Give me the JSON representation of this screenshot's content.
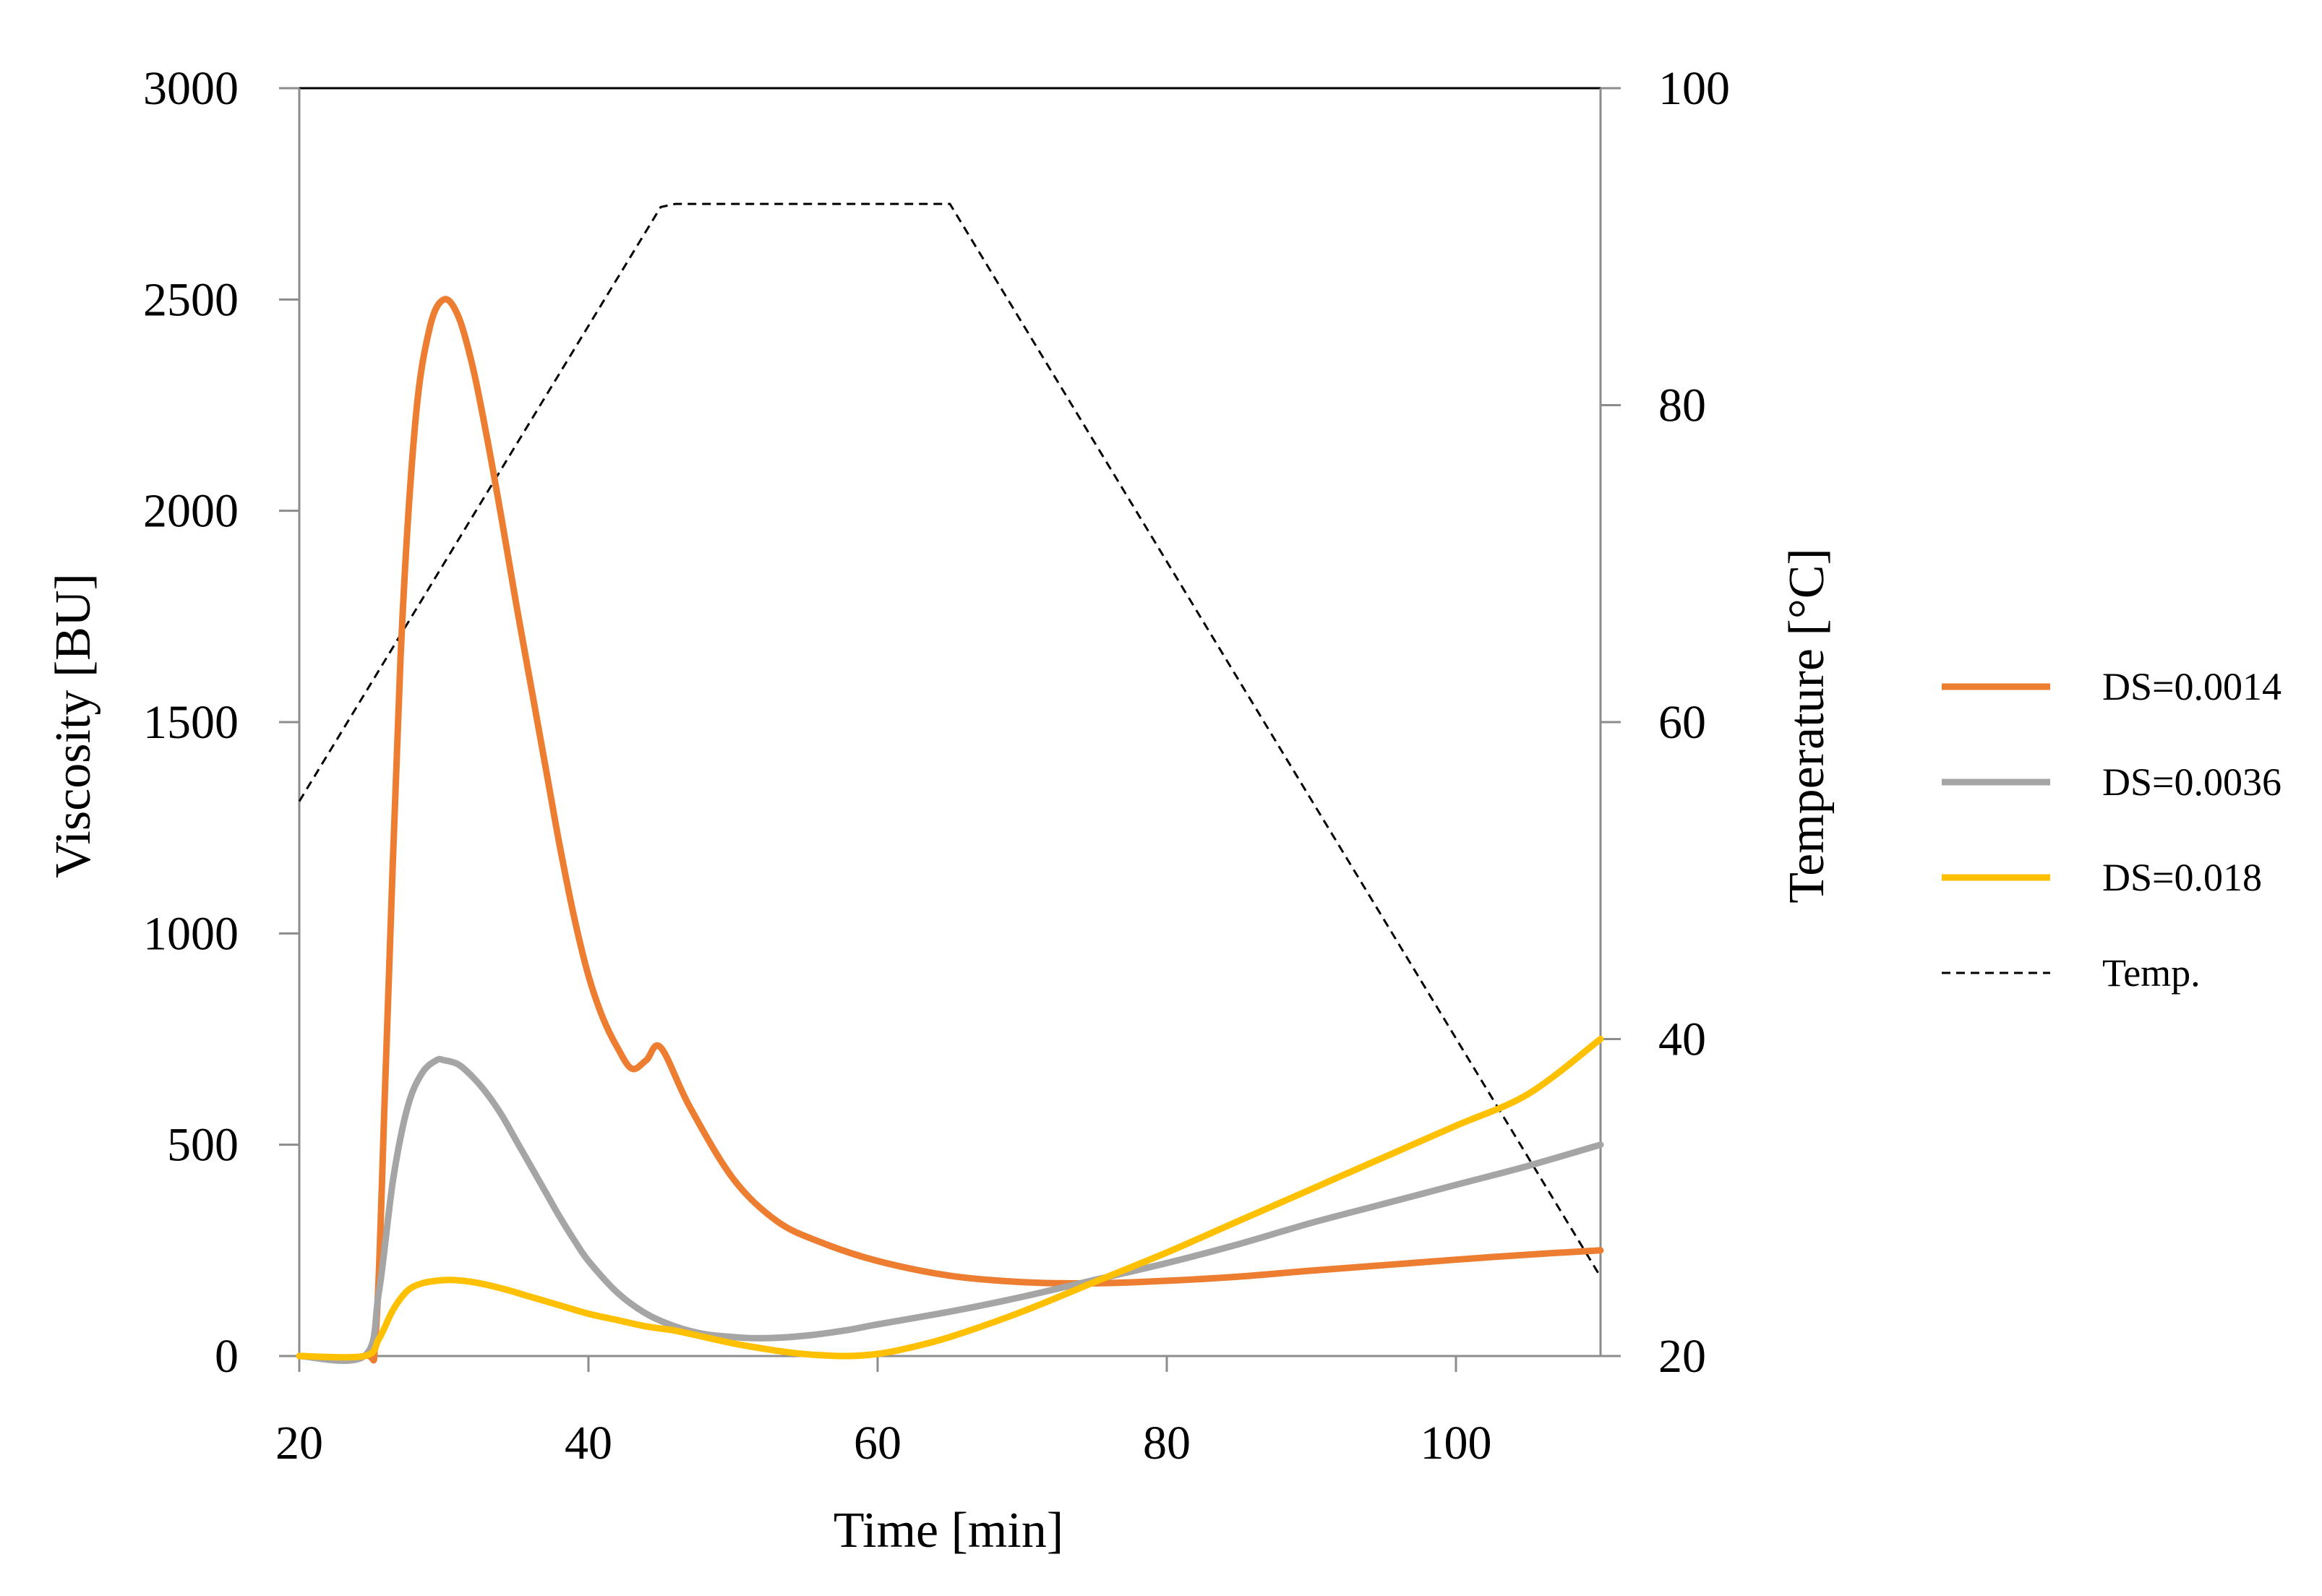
{
  "chart_data": {
    "type": "line",
    "x": [
      20,
      25,
      30,
      35,
      40,
      45,
      50,
      55,
      60,
      65,
      70,
      75,
      80,
      85,
      90,
      95,
      100,
      105,
      110
    ],
    "xlabel": "Time [min]",
    "ylabel": "Viscosity [BU]",
    "y2label": "Temperature [°C]",
    "xlim": [
      20,
      110
    ],
    "ylim": [
      0,
      3000
    ],
    "y2lim": [
      20,
      100
    ],
    "xticks": [
      20,
      40,
      60,
      80,
      100
    ],
    "xtick_labels": [
      "20",
      "40",
      "60",
      "80",
      "100"
    ],
    "yticks": [
      0,
      500,
      1000,
      1500,
      2000,
      2500,
      3000
    ],
    "ytick_labels": [
      "0",
      "500",
      "1000",
      "1500",
      "2000",
      "2500",
      "3000"
    ],
    "y2ticks": [
      20,
      40,
      60,
      80,
      100
    ],
    "y2tick_labels": [
      "20",
      "40",
      "60",
      "80",
      "100"
    ],
    "legend_position": "right",
    "series": [
      {
        "name": "DS=0.0014",
        "axis": "left",
        "color": "#ED7D31",
        "style": "solid",
        "x": [
          20,
          24.5,
          25.3,
          26,
          27,
          28,
          29,
          30,
          31,
          32,
          33,
          34,
          35,
          36,
          37,
          38,
          39,
          40,
          41,
          42,
          43,
          44,
          45,
          47,
          50,
          53,
          56,
          60,
          65,
          70,
          75,
          80,
          85,
          90,
          95,
          100,
          105,
          110
        ],
        "values": [
          0,
          0,
          60,
          700,
          1650,
          2200,
          2430,
          2500,
          2460,
          2340,
          2170,
          1980,
          1780,
          1590,
          1400,
          1210,
          1040,
          900,
          800,
          730,
          680,
          700,
          730,
          590,
          420,
          320,
          270,
          225,
          190,
          175,
          172,
          178,
          188,
          202,
          215,
          228,
          240,
          250
        ]
      },
      {
        "name": "DS=0.0036",
        "axis": "left",
        "color": "#A5A5A5",
        "style": "solid",
        "x": [
          20,
          24.5,
          25.5,
          26.5,
          27.5,
          28.5,
          29.5,
          30,
          31,
          32,
          33,
          34,
          35,
          36,
          37,
          38,
          39,
          40,
          42,
          44,
          46,
          48,
          50,
          52,
          55,
          58,
          60,
          65,
          70,
          75,
          80,
          85,
          90,
          95,
          100,
          105,
          110
        ],
        "values": [
          0,
          0,
          150,
          420,
          590,
          670,
          700,
          700,
          690,
          660,
          620,
          570,
          510,
          450,
          390,
          330,
          275,
          225,
          150,
          100,
          70,
          52,
          45,
          42,
          48,
          62,
          75,
          105,
          140,
          180,
          220,
          265,
          315,
          360,
          405,
          450,
          500
        ]
      },
      {
        "name": "DS=0.018",
        "axis": "left",
        "color": "#FFC000",
        "style": "solid",
        "x": [
          20,
          24.5,
          25.5,
          26.5,
          27.5,
          28.5,
          29.5,
          30.5,
          32,
          34,
          36,
          38,
          40,
          42,
          44,
          46,
          48,
          50,
          52,
          54,
          56,
          58,
          60,
          62,
          65,
          70,
          75,
          80,
          85,
          90,
          95,
          100,
          105,
          110
        ],
        "values": [
          0,
          0,
          40,
          110,
          155,
          172,
          178,
          180,
          175,
          160,
          140,
          120,
          100,
          85,
          70,
          60,
          45,
          30,
          18,
          8,
          2,
          0,
          5,
          18,
          45,
          105,
          175,
          245,
          320,
          395,
          470,
          545,
          620,
          750
        ]
      },
      {
        "name": "Temp.",
        "axis": "right",
        "color": "#000000",
        "style": "dashed",
        "x": [
          20,
          45,
          46,
          65,
          110
        ],
        "values": [
          55,
          92.5,
          92.7,
          92.7,
          25
        ]
      }
    ]
  }
}
